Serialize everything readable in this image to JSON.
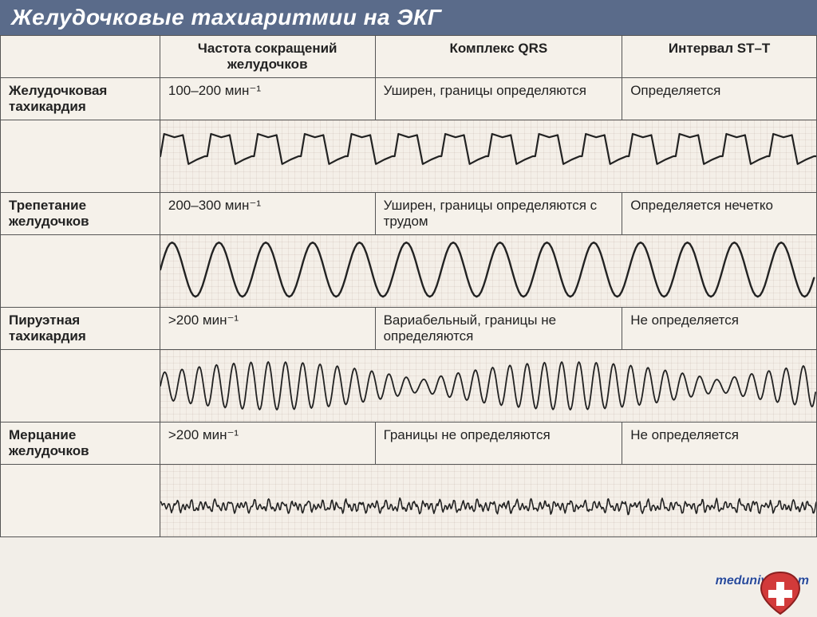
{
  "title": "Желудочковые тахиаритмии на ЭКГ",
  "columns": {
    "freq": "Частота сокращений желудочков",
    "qrs": "Комплекс QRS",
    "st": "Интервал ST–T"
  },
  "rows": [
    {
      "label": "Желудочковая тахикардия",
      "freq": "100–200 мин⁻¹",
      "qrs": "Уширен, границы определяются",
      "st": "Определяется",
      "wave": {
        "type": "vt",
        "stroke": "#222222",
        "stroke_width": 2.2,
        "amplitude": 28,
        "cycles": 14,
        "baseline": 50
      }
    },
    {
      "label": "Трепетание желудочков",
      "freq": "200–300 мин⁻¹",
      "qrs": "Уширен, границы определяются с трудом",
      "st": "Определяется нечетко",
      "wave": {
        "type": "flutter",
        "stroke": "#222222",
        "stroke_width": 2.4,
        "amplitude": 34,
        "cycles": 14,
        "baseline": 48
      }
    },
    {
      "label": "Пируэтная тахикардия",
      "freq": ">200 мин⁻¹",
      "qrs": "Вариабельный, границы не определяются",
      "st": "Не определяется",
      "wave": {
        "type": "torsades",
        "stroke": "#222222",
        "stroke_width": 1.8,
        "amplitude": 30,
        "cycles": 38,
        "baseline": 50
      }
    },
    {
      "label": "Мерцание желудочков",
      "freq": ">200 мин⁻¹",
      "qrs": "Границы не определяются",
      "st": "Не определяется",
      "wave": {
        "type": "fibrillation",
        "stroke": "#222222",
        "stroke_width": 1.6,
        "amplitude": 10,
        "cycles": 50,
        "baseline": 58
      }
    }
  ],
  "watermark": "meduniver.com",
  "colors": {
    "title_bg": "#5a6b8a",
    "title_fg": "#ffffff",
    "border": "#555555",
    "paper": "#f4efe8"
  }
}
